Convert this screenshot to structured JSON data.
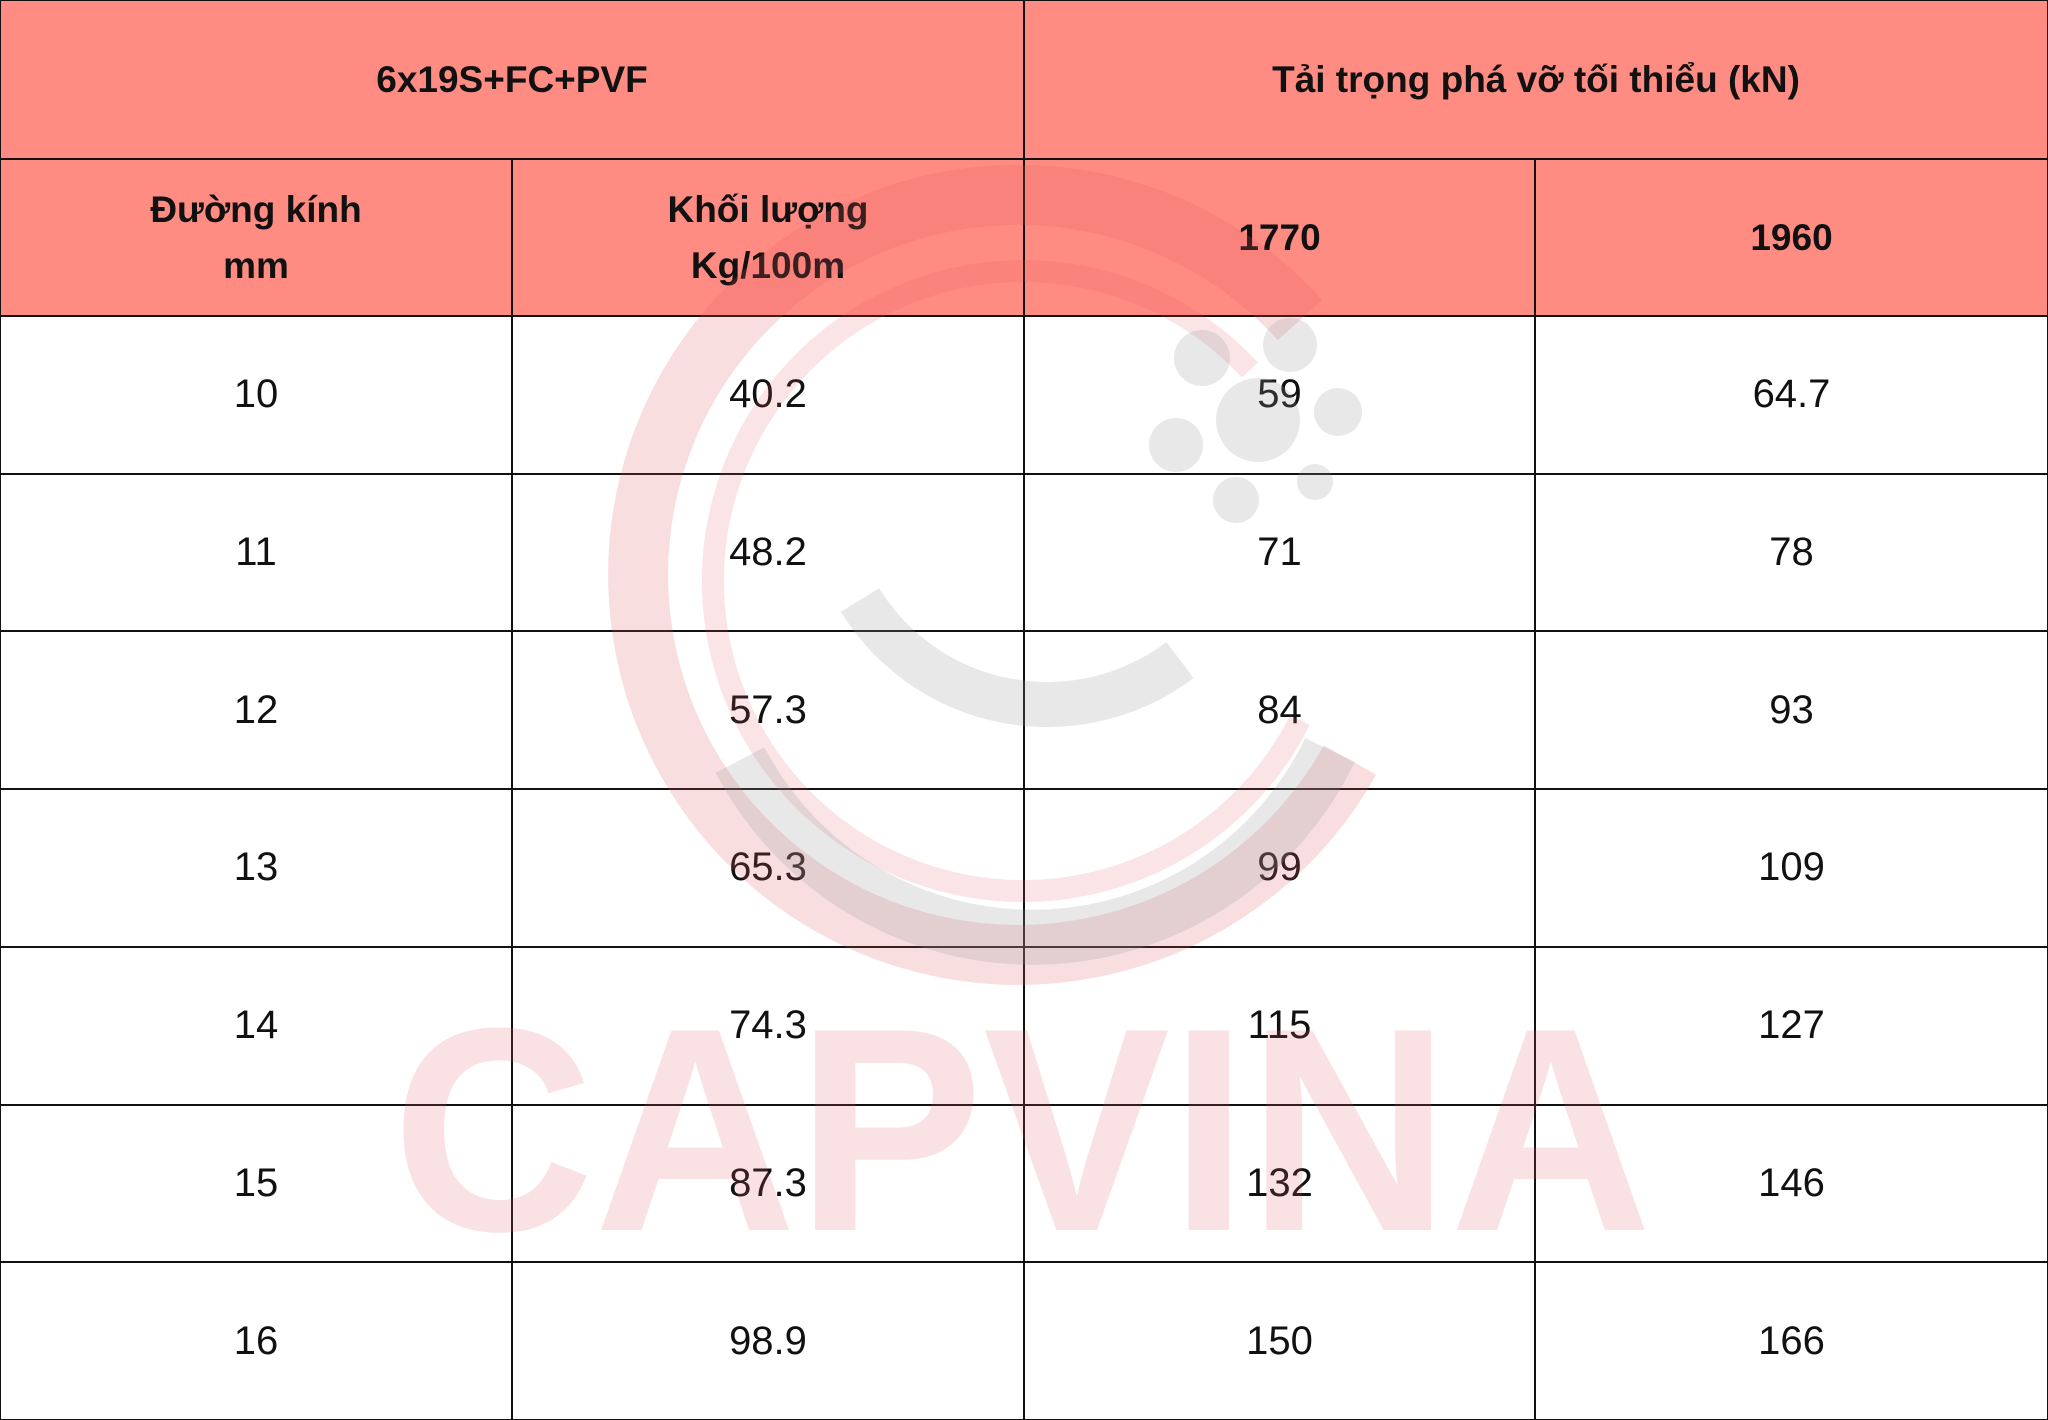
{
  "table": {
    "group_headers": [
      "6x19S+FC+PVF",
      "Tải trọng phá vỡ tối thiểu (kN)"
    ],
    "columns": [
      [
        "Đường kính",
        "mm"
      ],
      [
        "Khối lượng",
        "Kg/100m"
      ],
      [
        "1770"
      ],
      [
        "1960"
      ]
    ],
    "rows": [
      [
        10,
        40.2,
        59,
        64.7
      ],
      [
        11,
        48.2,
        71,
        78
      ],
      [
        12,
        57.3,
        84,
        93
      ],
      [
        13,
        65.3,
        99,
        109
      ],
      [
        14,
        74.3,
        115,
        127
      ],
      [
        15,
        87.3,
        132,
        146
      ],
      [
        16,
        98.9,
        150,
        166
      ]
    ]
  },
  "watermark": "CAPVINA"
}
